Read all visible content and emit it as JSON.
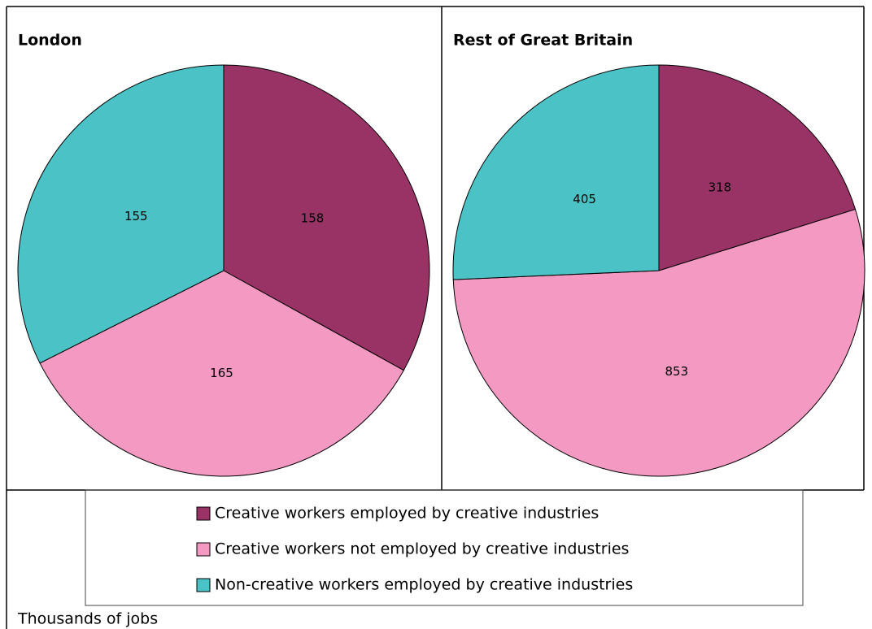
{
  "chart_data": [
    {
      "type": "pie",
      "title": "London",
      "categories": [
        "Creative workers employed by creative industries",
        "Creative workers not employed by creative industries",
        "Non-creative workers employed by creative industries"
      ],
      "values": [
        158,
        165,
        155
      ],
      "colors": [
        "#993366",
        "#f399c2",
        "#4bc2c5"
      ]
    },
    {
      "type": "pie",
      "title": "Rest of Great Britain",
      "categories": [
        "Creative workers employed by creative industries",
        "Creative workers not employed by creative industries",
        "Non-creative workers employed by creative industries"
      ],
      "values": [
        318,
        853,
        405
      ],
      "colors": [
        "#993366",
        "#f399c2",
        "#4bc2c5"
      ]
    }
  ],
  "note": "Thousands of jobs"
}
